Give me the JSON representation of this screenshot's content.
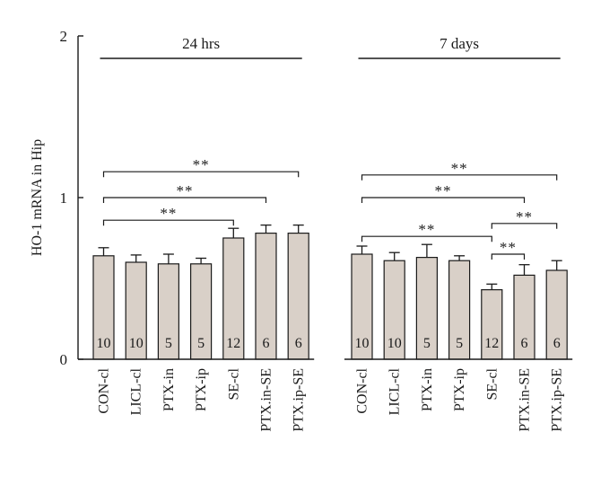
{
  "chart_data": {
    "type": "bar",
    "ylabel": "HO-1 mRNA in Hip",
    "ylim": [
      0,
      2
    ],
    "yticks": [
      "0",
      "1",
      "2"
    ],
    "groups": [
      {
        "label": "24 hrs",
        "categories": [
          "CON-cl",
          "LICL-cl",
          "PTX-in",
          "PTX-ip",
          "SE-cl",
          "PTX.in-SE",
          "PTX.ip-SE"
        ],
        "values": [
          0.64,
          0.6,
          0.59,
          0.59,
          0.75,
          0.78,
          0.78
        ],
        "errors": [
          0.05,
          0.045,
          0.06,
          0.035,
          0.06,
          0.05,
          0.05
        ],
        "n": [
          "10",
          "10",
          "5",
          "5",
          "12",
          "6",
          "6"
        ],
        "significance": [
          {
            "from": 0,
            "to": 4,
            "level": 0.86,
            "label": "**"
          },
          {
            "from": 0,
            "to": 5,
            "level": 1.0,
            "label": "**"
          },
          {
            "from": 0,
            "to": 6,
            "level": 1.16,
            "label": "**"
          }
        ]
      },
      {
        "label": "7 days",
        "categories": [
          "CON-cl",
          "LICL-cl",
          "PTX-in",
          "PTX-ip",
          "SE-cl",
          "PTX.in-SE",
          "PTX.ip-SE"
        ],
        "values": [
          0.65,
          0.61,
          0.63,
          0.61,
          0.43,
          0.52,
          0.55
        ],
        "errors": [
          0.05,
          0.05,
          0.08,
          0.03,
          0.035,
          0.065,
          0.06
        ],
        "n": [
          "10",
          "10",
          "5",
          "5",
          "12",
          "6",
          "6"
        ],
        "significance": [
          {
            "from": 0,
            "to": 4,
            "level": 0.76,
            "label": "**"
          },
          {
            "from": 0,
            "to": 5,
            "level": 1.0,
            "label": "**"
          },
          {
            "from": 0,
            "to": 6,
            "level": 1.14,
            "label": "**"
          },
          {
            "from": 4,
            "to": 5,
            "level": 0.65,
            "label": "**"
          },
          {
            "from": 4,
            "to": 6,
            "level": 0.84,
            "label": "**"
          }
        ]
      }
    ]
  }
}
